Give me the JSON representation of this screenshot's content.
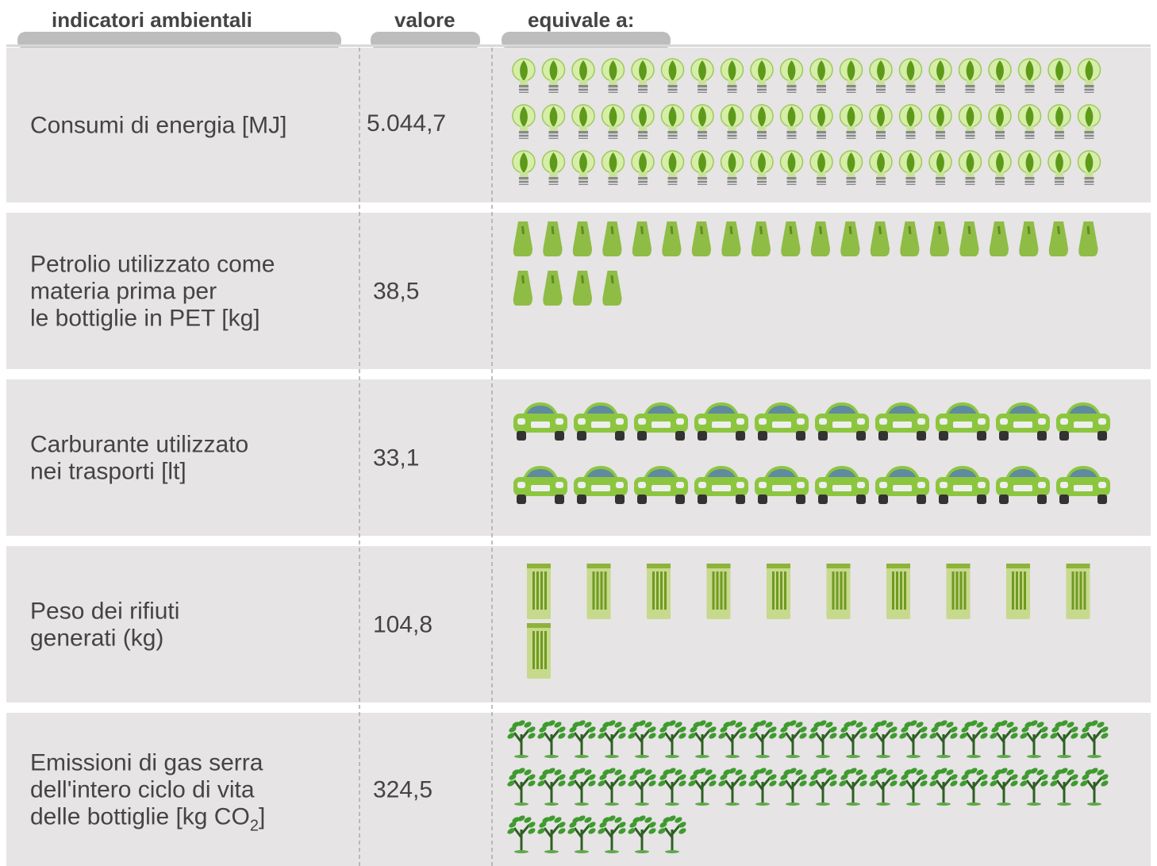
{
  "header": {
    "columns": [
      "indicatori ambientali",
      "valore",
      "equivale a:"
    ]
  },
  "rows": [
    {
      "label_lines": [
        "Consumi di energia [MJ]"
      ],
      "value": "5.044,7",
      "icon_count": 60
    },
    {
      "label_lines": [
        "Petrolio utilizzato come",
        "materia prima per",
        "le bottiglie in PET [kg]"
      ],
      "value": "38,5",
      "icon_count": 24
    },
    {
      "label_lines": [
        "Carburante utilizzato",
        "nei trasporti [lt]"
      ],
      "value": "33,1",
      "icon_count": 20
    },
    {
      "label_lines": [
        "Peso dei rifiuti",
        "generati (kg)"
      ],
      "value": "104,8",
      "icon_count": 11
    },
    {
      "label_lines": [
        "Emissioni di gas serra",
        "dell'intero ciclo di vita",
        {
          "text": "delle bottiglie [kg CO",
          "sub": "2",
          "after": "]"
        }
      ],
      "value": "324,5",
      "icon_count": 46
    }
  ]
}
